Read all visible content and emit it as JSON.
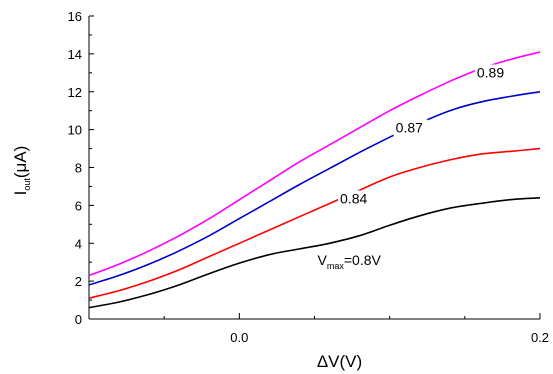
{
  "chart_data": {
    "type": "line",
    "title": "",
    "xlabel": "ΔV(V)",
    "ylabel": {
      "main": "I",
      "sub": "out",
      "rest": "(μA)"
    },
    "xlim": [
      -0.1,
      0.2
    ],
    "ylim": [
      0,
      16
    ],
    "x_ticks": [
      0.0,
      0.2
    ],
    "x_tick_labels": [
      "0.0",
      "0.2"
    ],
    "x_minor_ticks": [
      -0.05,
      0.05,
      0.1,
      0.15
    ],
    "y_ticks": [
      0,
      2,
      4,
      6,
      8,
      10,
      12,
      14,
      16
    ],
    "y_tick_labels": [
      "0",
      "2",
      "4",
      "6",
      "8",
      "10",
      "12",
      "14",
      "16"
    ],
    "grid": false,
    "legend": "none",
    "series": [
      {
        "color": "#000000",
        "label": {
          "prefix": "V",
          "sub": "max",
          "suffix": "=0.8V",
          "at": [
            0.052,
            2.85
          ]
        },
        "points": [
          [
            -0.1,
            0.6
          ],
          [
            -0.08,
            0.9
          ],
          [
            -0.06,
            1.3
          ],
          [
            -0.04,
            1.8
          ],
          [
            -0.02,
            2.4
          ],
          [
            0.0,
            2.95
          ],
          [
            0.02,
            3.4
          ],
          [
            0.04,
            3.7
          ],
          [
            0.06,
            4.0
          ],
          [
            0.08,
            4.4
          ],
          [
            0.1,
            4.95
          ],
          [
            0.12,
            5.45
          ],
          [
            0.14,
            5.85
          ],
          [
            0.16,
            6.1
          ],
          [
            0.18,
            6.3
          ],
          [
            0.2,
            6.4
          ]
        ]
      },
      {
        "color": "#ff0000",
        "label": {
          "text": "0.84",
          "at": [
            0.067,
            6.1
          ]
        },
        "points": [
          [
            -0.1,
            1.1
          ],
          [
            -0.08,
            1.5
          ],
          [
            -0.06,
            2.0
          ],
          [
            -0.04,
            2.6
          ],
          [
            -0.02,
            3.3
          ],
          [
            0.0,
            4.0
          ],
          [
            0.02,
            4.7
          ],
          [
            0.04,
            5.4
          ],
          [
            0.06,
            6.1
          ],
          [
            0.08,
            6.8
          ],
          [
            0.1,
            7.5
          ],
          [
            0.12,
            8.0
          ],
          [
            0.14,
            8.4
          ],
          [
            0.16,
            8.7
          ],
          [
            0.18,
            8.85
          ],
          [
            0.2,
            9.0
          ]
        ]
      },
      {
        "color": "#0000cc",
        "label": {
          "text": "0.87",
          "at": [
            0.104,
            9.85
          ]
        },
        "points": [
          [
            -0.1,
            1.8
          ],
          [
            -0.08,
            2.3
          ],
          [
            -0.06,
            2.9
          ],
          [
            -0.04,
            3.6
          ],
          [
            -0.02,
            4.4
          ],
          [
            0.0,
            5.3
          ],
          [
            0.02,
            6.2
          ],
          [
            0.04,
            7.1
          ],
          [
            0.06,
            7.95
          ],
          [
            0.08,
            8.8
          ],
          [
            0.1,
            9.6
          ],
          [
            0.12,
            10.35
          ],
          [
            0.14,
            11.0
          ],
          [
            0.16,
            11.45
          ],
          [
            0.18,
            11.75
          ],
          [
            0.2,
            12.0
          ]
        ]
      },
      {
        "color": "#ff00ff",
        "label": {
          "text": "0.89",
          "at": [
            0.158,
            12.75
          ]
        },
        "points": [
          [
            -0.1,
            2.3
          ],
          [
            -0.08,
            2.9
          ],
          [
            -0.06,
            3.6
          ],
          [
            -0.04,
            4.4
          ],
          [
            -0.02,
            5.3
          ],
          [
            0.0,
            6.3
          ],
          [
            0.02,
            7.3
          ],
          [
            0.04,
            8.3
          ],
          [
            0.06,
            9.2
          ],
          [
            0.08,
            10.1
          ],
          [
            0.1,
            11.0
          ],
          [
            0.12,
            11.8
          ],
          [
            0.14,
            12.55
          ],
          [
            0.16,
            13.2
          ],
          [
            0.18,
            13.7
          ],
          [
            0.2,
            14.1
          ]
        ]
      }
    ]
  }
}
